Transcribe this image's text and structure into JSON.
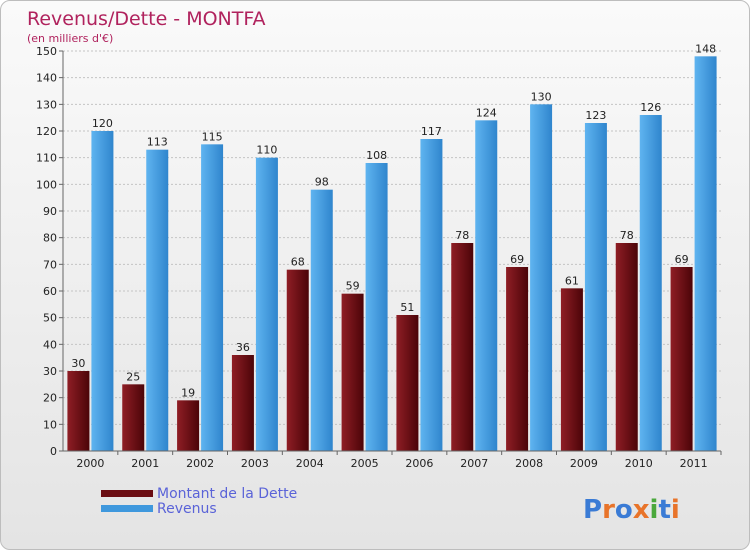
{
  "chart_data": {
    "type": "bar",
    "title": "Revenus/Dette - MONTFA",
    "subtitle": "(en milliers d'€)",
    "categories": [
      "2000",
      "2001",
      "2002",
      "2003",
      "2004",
      "2005",
      "2006",
      "2007",
      "2008",
      "2009",
      "2010",
      "2011"
    ],
    "series": [
      {
        "name": "Montant de la Dette",
        "color": "#6b0d12",
        "values": [
          30,
          25,
          19,
          36,
          68,
          59,
          51,
          78,
          69,
          61,
          78,
          69
        ]
      },
      {
        "name": "Revenus",
        "color": "#3f98dd",
        "values": [
          120,
          113,
          115,
          110,
          98,
          108,
          117,
          124,
          130,
          123,
          126,
          148
        ]
      }
    ],
    "ylim": [
      0,
      150
    ],
    "yticks": [
      0,
      10,
      20,
      30,
      40,
      50,
      60,
      70,
      80,
      90,
      100,
      110,
      120,
      130,
      140,
      150
    ],
    "grid": true,
    "legend_position": "bottom-left"
  },
  "logo": {
    "letters": [
      "P",
      "r",
      "o",
      "x",
      "i",
      "t",
      "i"
    ],
    "colors": [
      "#3a7bd5",
      "#e8742a",
      "#3a7bd5",
      "#e8742a",
      "#4aa83c",
      "#3a7bd5",
      "#e8742a"
    ]
  }
}
